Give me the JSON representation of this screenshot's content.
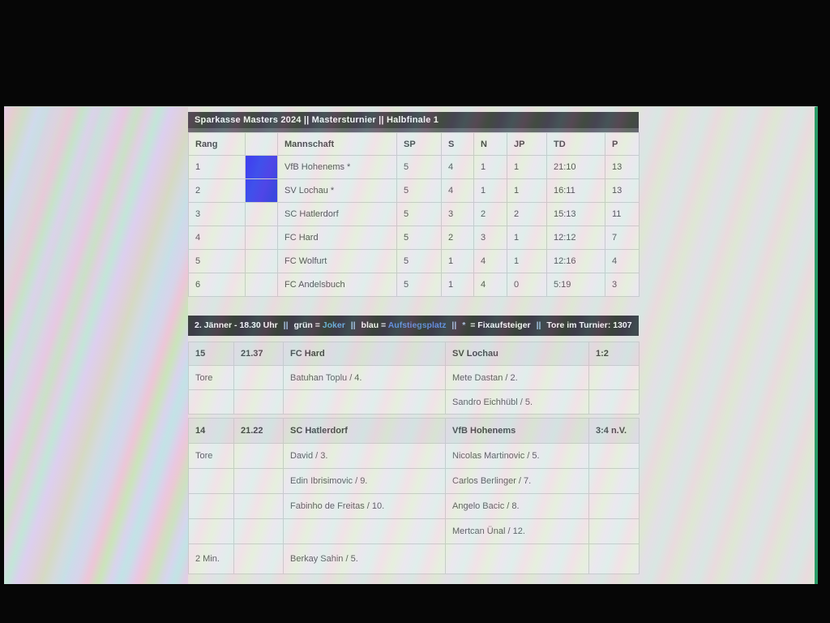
{
  "title_bar": {
    "text": "Sparkasse Masters 2024 || Mastersturnier || Halbfinale 1"
  },
  "standings": {
    "headers": [
      "Rang",
      "",
      "Mannschaft",
      "SP",
      "S",
      "N",
      "JP",
      "TD",
      "P"
    ],
    "rows": [
      {
        "rang": "1",
        "marker": "blue",
        "team": "VfB Hohenems *",
        "sp": "5",
        "s": "4",
        "n": "1",
        "jp": "1",
        "td": "21:10",
        "p": "13"
      },
      {
        "rang": "2",
        "marker": "blue",
        "team": "SV Lochau *",
        "sp": "5",
        "s": "4",
        "n": "1",
        "jp": "1",
        "td": "16:11",
        "p": "13"
      },
      {
        "rang": "3",
        "marker": "",
        "team": "SC Hatlerdorf",
        "sp": "5",
        "s": "3",
        "n": "2",
        "jp": "2",
        "td": "15:13",
        "p": "11"
      },
      {
        "rang": "4",
        "marker": "",
        "team": "FC Hard",
        "sp": "5",
        "s": "2",
        "n": "3",
        "jp": "1",
        "td": "12:12",
        "p": "7"
      },
      {
        "rang": "5",
        "marker": "",
        "team": "FC Wolfurt",
        "sp": "5",
        "s": "1",
        "n": "4",
        "jp": "1",
        "td": "12:16",
        "p": "4"
      },
      {
        "rang": "6",
        "marker": "",
        "team": "FC Andelsbuch",
        "sp": "5",
        "s": "1",
        "n": "4",
        "jp": "0",
        "td": "5:19",
        "p": "3"
      }
    ]
  },
  "info_bar": {
    "date": "2. Jänner - 18.30 Uhr",
    "sep": "||",
    "green_label": "grün =",
    "joker": "Joker",
    "blue_label": "blau =",
    "aufstieg": "Aufstiegsplatz",
    "star": "*",
    "eq": "=",
    "fix": "Fixaufsteiger",
    "tore_total": "Tore im Turnier: 1307"
  },
  "matches": [
    {
      "nr": "15",
      "time": "21.37",
      "home": "FC Hard",
      "away": "SV Lochau",
      "score": "1:2",
      "rows": [
        {
          "label": "Tore",
          "home": "Batuhan Toplu / 4.",
          "away": "Mete Dastan / 2.",
          "home_red": false
        },
        {
          "label": "",
          "home": "",
          "away": "Sandro Eichhübl / 5.",
          "home_red": false
        }
      ]
    },
    {
      "nr": "14",
      "time": "21.22",
      "home": "SC Hatlerdorf",
      "away": "VfB Hohenems",
      "score": "3:4 n.V.",
      "rows": [
        {
          "label": "Tore",
          "home": "David / 3.",
          "away": "Nicolas Martinovic / 5.",
          "home_red": false
        },
        {
          "label": "",
          "home": "Edin Ibrisimovic / 9.",
          "away": "Carlos Berlinger / 7.",
          "home_red": false
        },
        {
          "label": "",
          "home": "Fabinho de Freitas / 10.",
          "away": "Angelo Bacic / 8.",
          "home_red": false
        },
        {
          "label": "",
          "home": "",
          "away": "Mertcan Ünal / 12.",
          "home_red": false
        },
        {
          "label": "2 Min.",
          "home": "Berkay Sahin / 5.",
          "away": "",
          "home_red": true,
          "tall": true
        }
      ]
    }
  ],
  "colors": {
    "promotion_cell_blue": "#0e13ef",
    "penalty_red": "#c43a2f",
    "joker_text": "#4da0d8",
    "aufstieg_text": "#4277d8",
    "bar_black": "#17171b",
    "screen_edge_green": "#2a9a66"
  }
}
